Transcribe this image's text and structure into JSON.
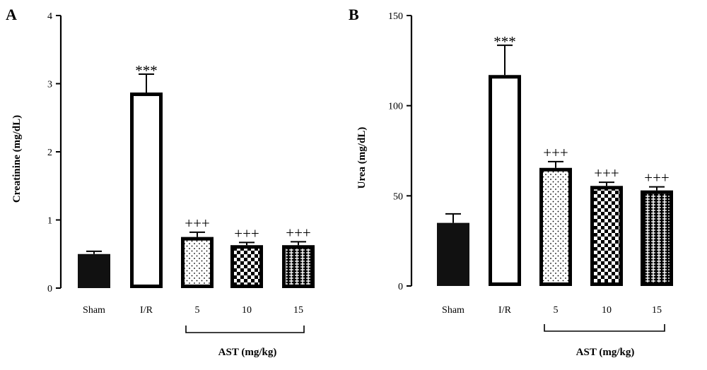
{
  "chart_data": [
    {
      "type": "bar",
      "panel": "A",
      "ylabel": "Creatinine (mg/dL)",
      "ylim": [
        0,
        4
      ],
      "yticks": [
        "0",
        "1",
        "2",
        "3",
        "4"
      ],
      "categories": [
        "Sham",
        "I/R",
        "5",
        "10",
        "15"
      ],
      "values": [
        0.5,
        2.87,
        0.75,
        0.63,
        0.63
      ],
      "errors": [
        0.04,
        0.27,
        0.07,
        0.04,
        0.05
      ],
      "significance": [
        "",
        "***",
        "+++",
        "+++",
        "+++"
      ],
      "patterns": [
        "solid",
        "open",
        "dots",
        "checker",
        "brick"
      ],
      "group_label": "AST (mg/kg)",
      "group_span": [
        2,
        4
      ]
    },
    {
      "type": "bar",
      "panel": "B",
      "ylabel": "Urea (mg/dL)",
      "ylim": [
        0,
        150
      ],
      "yticks": [
        "0",
        "50",
        "100",
        "150"
      ],
      "categories": [
        "Sham",
        "I/R",
        "5",
        "10",
        "15"
      ],
      "values": [
        35,
        117,
        65.5,
        55.5,
        53
      ],
      "errors": [
        5,
        16.5,
        3.5,
        2,
        2
      ],
      "significance": [
        "",
        "***",
        "+++",
        "+++",
        "+++"
      ],
      "patterns": [
        "solid",
        "open",
        "dots",
        "checker",
        "brick"
      ],
      "group_label": "AST (mg/kg)",
      "group_span": [
        2,
        4
      ]
    }
  ]
}
